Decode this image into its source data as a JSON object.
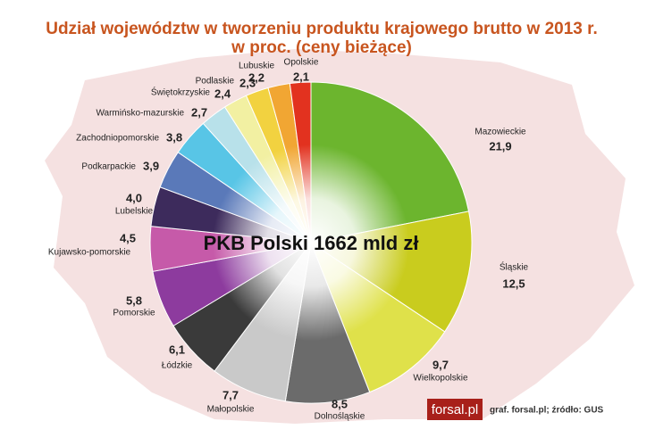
{
  "chart_data": {
    "type": "pie",
    "title": "Udział województw w tworzeniu produktu krajowego brutto w 2013 r.",
    "subtitle": "w proc. (ceny bieżące)",
    "center_label": "PKB Polski 1662 mld zł",
    "categories": [
      "Mazowieckie",
      "Śląskie",
      "Wielkopolskie",
      "Dolnośląskie",
      "Małopolskie",
      "Łódzkie",
      "Pomorskie",
      "Kujawsko-pomorskie",
      "Lubelskie",
      "Podkarpackie",
      "Zachodniopomorskie",
      "Warmińsko-mazurskie",
      "Świętokrzyskie",
      "Podlaskie",
      "Lubuskie",
      "Opolskie"
    ],
    "values": [
      21.9,
      12.5,
      9.7,
      8.5,
      7.7,
      6.1,
      5.8,
      4.5,
      4.0,
      3.9,
      3.8,
      2.7,
      2.4,
      2.3,
      2.2,
      2.1
    ],
    "value_labels": [
      "21,9",
      "12,5",
      "9,7",
      "8,5",
      "7,7",
      "6,1",
      "5,8",
      "4,5",
      "4,0",
      "3,9",
      "3,8",
      "2,7",
      "2,4",
      "2,3",
      "2,2",
      "2,1"
    ],
    "colors": [
      "#6cb52e",
      "#c9cc1e",
      "#dfe14a",
      "#6b6b6b",
      "#c9c9c9",
      "#3a3a3a",
      "#8d3b9e",
      "#c65aa9",
      "#3d2b5c",
      "#5a79b9",
      "#58c5e6",
      "#b8e1ea",
      "#f2f0a2",
      "#f2d240",
      "#f1a633",
      "#e2321f"
    ],
    "logo": "forsal.pl",
    "source": "graf. forsal.pl;  źródło: GUS"
  }
}
